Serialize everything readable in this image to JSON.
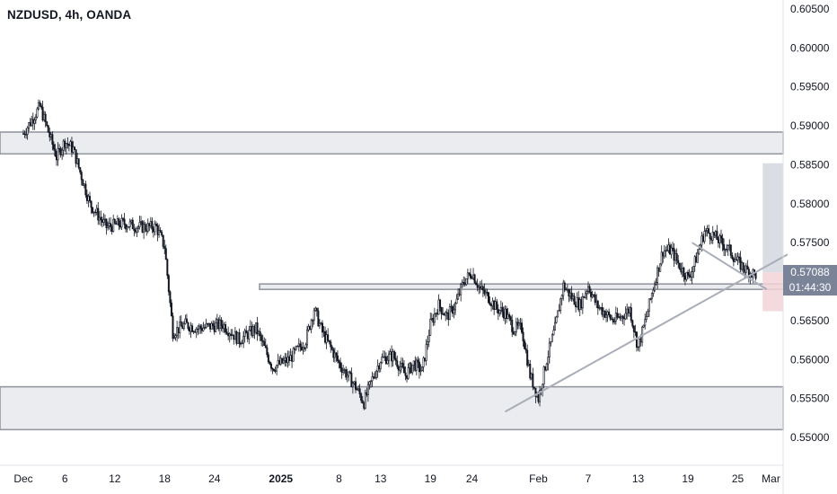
{
  "header": {
    "title": "NZDUSD, 4h, OANDA"
  },
  "price_tag": {
    "price": "0.57088",
    "countdown": "01:44:30"
  },
  "chart_data": {
    "type": "candlestick",
    "symbol": "NZDUSD",
    "interval": "4h",
    "source": "OANDA",
    "ylim": [
      0.5482,
      0.6062
    ],
    "y_ticks": [
      0.605,
      0.6,
      0.595,
      0.59,
      0.585,
      0.58,
      0.575,
      0.57,
      0.565,
      0.56,
      0.555,
      0.55
    ],
    "y_tick_labels": [
      "0.60500",
      "0.60000",
      "0.59500",
      "0.59000",
      "0.58500",
      "0.58000",
      "0.57500",
      "0.57000",
      "0.56500",
      "0.56000",
      "0.55500",
      "0.55000"
    ],
    "x_ticks": [
      {
        "label": "Dec",
        "day": 0
      },
      {
        "label": "6",
        "day": 5
      },
      {
        "label": "12",
        "day": 11
      },
      {
        "label": "18",
        "day": 17
      },
      {
        "label": "24",
        "day": 23
      },
      {
        "label": "2025",
        "day": 31
      },
      {
        "label": "8",
        "day": 38
      },
      {
        "label": "13",
        "day": 43
      },
      {
        "label": "19",
        "day": 49
      },
      {
        "label": "24",
        "day": 54
      },
      {
        "label": "Feb",
        "day": 62
      },
      {
        "label": "7",
        "day": 68
      },
      {
        "label": "13",
        "day": 74
      },
      {
        "label": "19",
        "day": 80
      },
      {
        "label": "25",
        "day": 86
      },
      {
        "label": "Mar",
        "day": 90
      }
    ],
    "last_price": 0.57088,
    "countdown": "01:44:30",
    "zones": [
      {
        "from": 0.5864,
        "to": 0.5892,
        "color": "#d1d4dc"
      },
      {
        "from": 0.569,
        "to": 0.5697,
        "color": "#d1d4dc"
      },
      {
        "from": 0.551,
        "to": 0.5565,
        "color": "#d1d4dc"
      }
    ],
    "trendlines": [
      {
        "from": {
          "day": 58,
          "price": 0.5533
        },
        "to": {
          "day": 92,
          "price": 0.5735
        }
      },
      {
        "from": {
          "day": 80.5,
          "price": 0.575
        },
        "to": {
          "day": 89.5,
          "price": 0.569
        }
      }
    ],
    "position": {
      "entry_day": 89.0,
      "end_day": 91.5,
      "entry": 0.5712,
      "target": 0.5852,
      "stop": 0.5662,
      "profit_color": "#d1d4dc",
      "loss_color": "#f3d3d7"
    },
    "waypoints": [
      [
        0,
        0.589
      ],
      [
        2,
        0.5925
      ],
      [
        4,
        0.586
      ],
      [
        5,
        0.588
      ],
      [
        6,
        0.587
      ],
      [
        8,
        0.58
      ],
      [
        10,
        0.577
      ],
      [
        12,
        0.5775
      ],
      [
        14,
        0.577
      ],
      [
        16,
        0.577
      ],
      [
        17,
        0.5745
      ],
      [
        18,
        0.5635
      ],
      [
        19.5,
        0.5645
      ],
      [
        21,
        0.564
      ],
      [
        24,
        0.5645
      ],
      [
        26,
        0.5625
      ],
      [
        28,
        0.564
      ],
      [
        30,
        0.559
      ],
      [
        32,
        0.56
      ],
      [
        34,
        0.5625
      ],
      [
        35,
        0.5665
      ],
      [
        36,
        0.5635
      ],
      [
        38,
        0.5595
      ],
      [
        40,
        0.5565
      ],
      [
        41,
        0.5545
      ],
      [
        42,
        0.5575
      ],
      [
        43,
        0.56
      ],
      [
        44.5,
        0.5605
      ],
      [
        46,
        0.558
      ],
      [
        47,
        0.5595
      ],
      [
        48,
        0.5585
      ],
      [
        49,
        0.5645
      ],
      [
        50,
        0.567
      ],
      [
        51,
        0.5655
      ],
      [
        52,
        0.567
      ],
      [
        53,
        0.57
      ],
      [
        54,
        0.5712
      ],
      [
        55,
        0.569
      ],
      [
        56,
        0.568
      ],
      [
        57,
        0.5665
      ],
      [
        58,
        0.566
      ],
      [
        59,
        0.564
      ],
      [
        60,
        0.564
      ],
      [
        61,
        0.558
      ],
      [
        62,
        0.555
      ],
      [
        63,
        0.56
      ],
      [
        64,
        0.564
      ],
      [
        65,
        0.5695
      ],
      [
        66,
        0.568
      ],
      [
        67,
        0.567
      ],
      [
        68,
        0.5695
      ],
      [
        69,
        0.567
      ],
      [
        70,
        0.566
      ],
      [
        71,
        0.565
      ],
      [
        72,
        0.5655
      ],
      [
        73,
        0.5665
      ],
      [
        74,
        0.5615
      ],
      [
        75,
        0.5655
      ],
      [
        76,
        0.57
      ],
      [
        77,
        0.574
      ],
      [
        78,
        0.574
      ],
      [
        79,
        0.572
      ],
      [
        80,
        0.5705
      ],
      [
        80.5,
        0.5715
      ],
      [
        81,
        0.573
      ],
      [
        82,
        0.5765
      ],
      [
        83,
        0.576
      ],
      [
        84,
        0.575
      ],
      [
        85,
        0.574
      ],
      [
        86,
        0.5725
      ],
      [
        87,
        0.5715
      ],
      [
        88.2,
        0.57088
      ]
    ]
  }
}
